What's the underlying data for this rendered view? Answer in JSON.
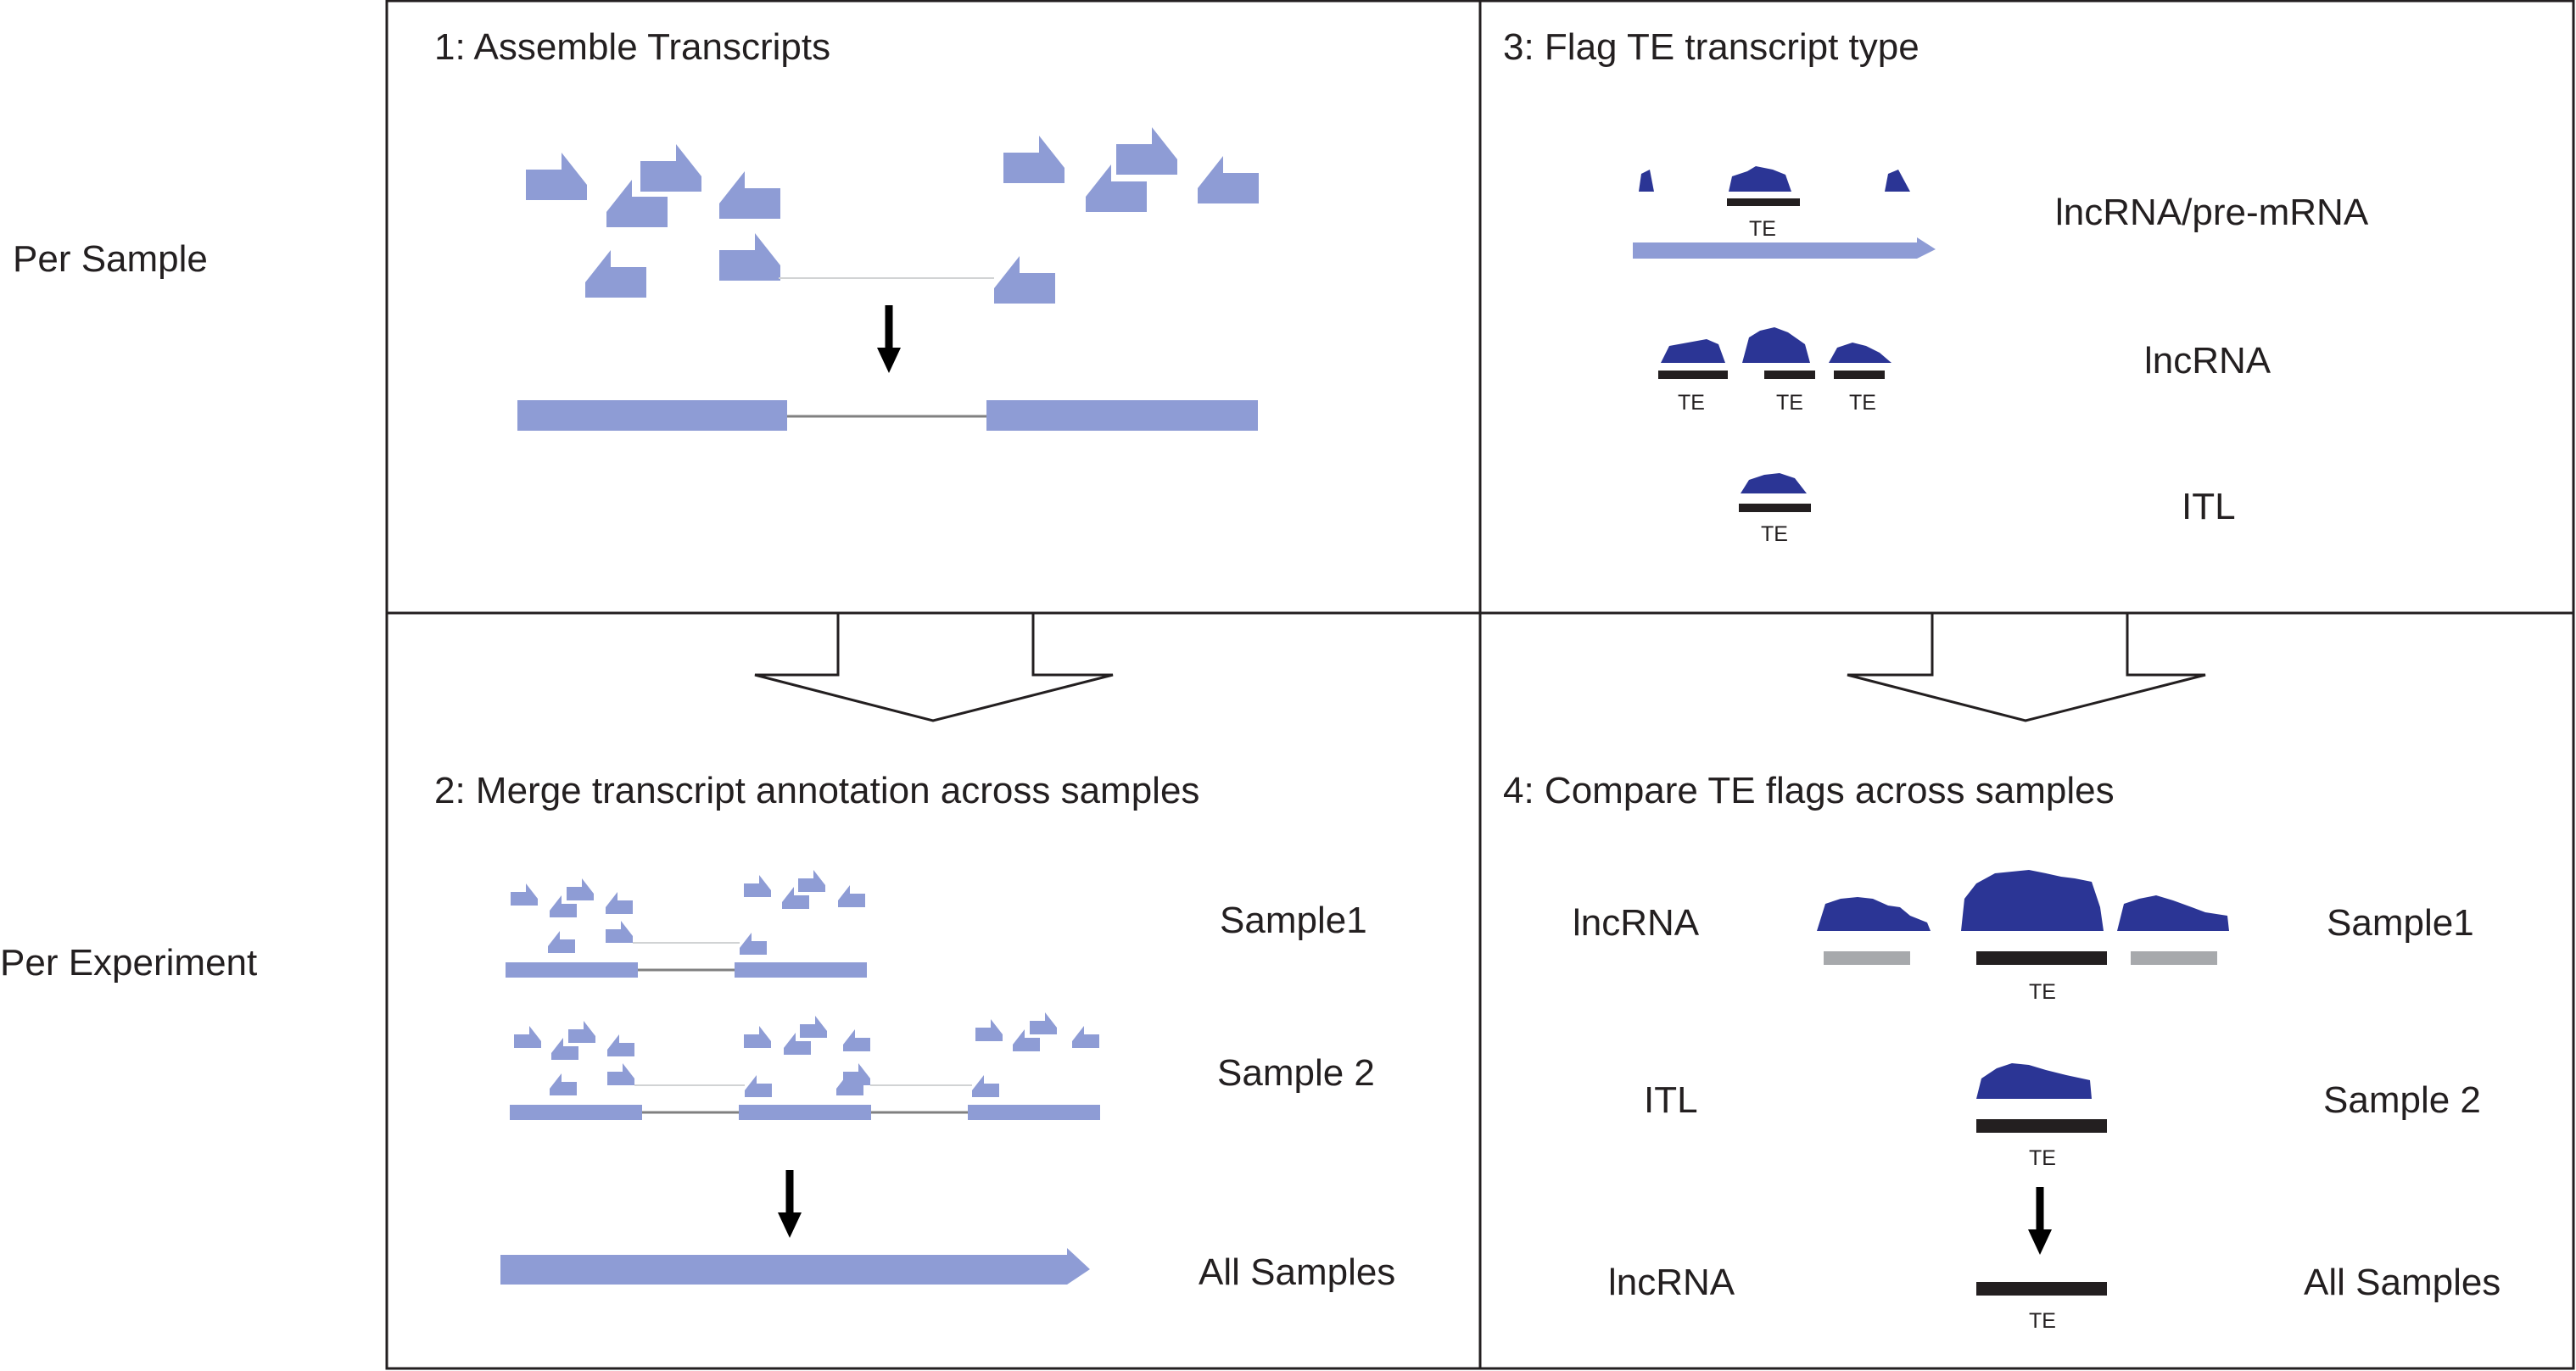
{
  "rows": {
    "per_sample": "Per Sample",
    "per_experiment": "Per Experiment"
  },
  "panels": {
    "p1": {
      "title": "1: Assemble Transcripts"
    },
    "p2": {
      "title": "2: Merge transcript annotation across samples",
      "sample1": "Sample1",
      "sample2": "Sample 2",
      "all": "All Samples"
    },
    "p3": {
      "title": "3: Flag TE transcript type",
      "lncrna_premrna": "lncRNA/pre-mRNA",
      "lncrna": "lncRNA",
      "itl": "ITL"
    },
    "p4": {
      "title": "4: Compare TE flags across samples",
      "row1_type": "lncRNA",
      "row1_sample": "Sample1",
      "row2_type": "ITL",
      "row2_sample": "Sample 2",
      "row3_type": "lncRNA",
      "row3_sample": "All Samples"
    }
  },
  "te_label": "TE",
  "colors": {
    "read": "#8e9cd5",
    "coverage": "#2b3595",
    "element": "#231f20",
    "inactive_element": "#a7a9ac",
    "intron": "#808080"
  }
}
